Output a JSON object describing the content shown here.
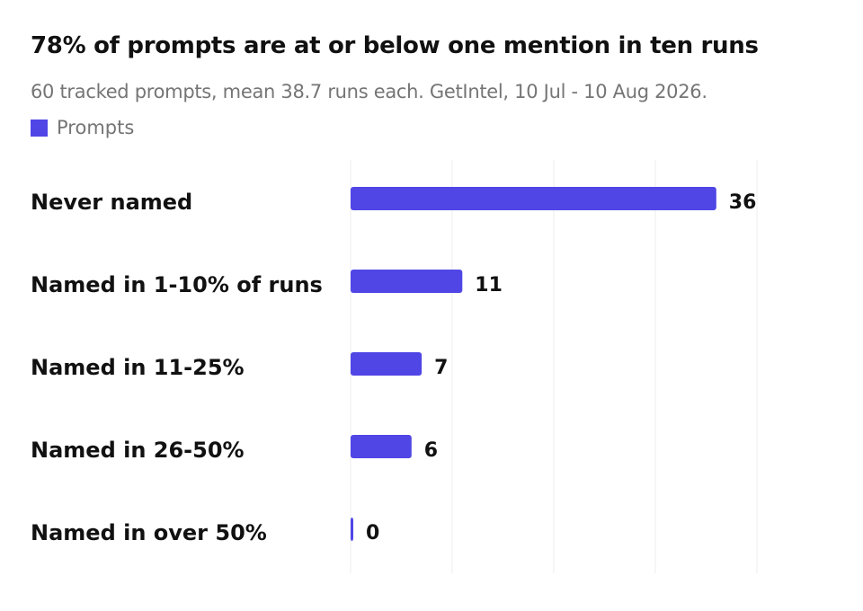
{
  "chart_data": {
    "type": "bar",
    "orientation": "horizontal",
    "title": "78% of prompts are at or below one mention in ten runs",
    "subtitle": "60 tracked prompts, mean 38.7 runs each. GetIntel, 10 Jul - 10 Aug 2026.",
    "categories": [
      "Never named",
      "Named in 1-10% of runs",
      "Named in 11-25%",
      "Named in 26-50%",
      "Named in over 50%"
    ],
    "series": [
      {
        "name": "Prompts",
        "values": [
          36,
          11,
          7,
          6,
          0
        ]
      }
    ],
    "xlim": [
      0,
      40
    ],
    "grid": true,
    "legend": "top-left",
    "color": "#5046e5",
    "grid_color": "#ececec"
  }
}
